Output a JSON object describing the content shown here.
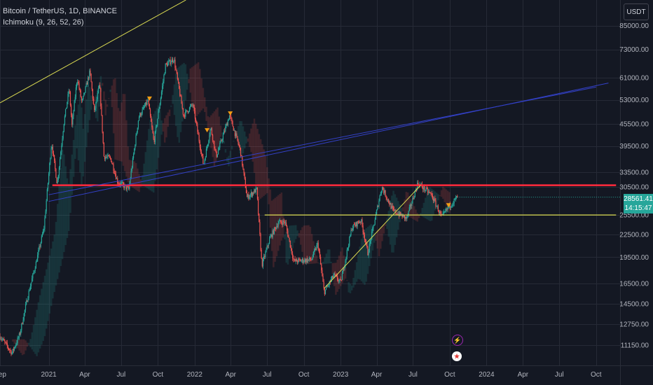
{
  "legend": {
    "symbol": "Bitcoin / TetherUS, 1D, BINANCE",
    "indicator": "Ichimoku (9, 26, 52, 26)"
  },
  "price_scale": {
    "unit": "USDT"
  },
  "last_price": {
    "value": "28561.41",
    "countdown": "14:15:47"
  },
  "colors": {
    "background": "#141823",
    "grid": "#262a36",
    "up": "#26a69a",
    "down": "#ef5350",
    "resistance": "#ff2a3c",
    "trendline": "#dcdc52",
    "channel": "#3341c8",
    "marker": "#f39c12"
  },
  "events": {
    "lightning_icon": "lightning-icon",
    "flag_icon": "us-flag-icon"
  },
  "chart_data": {
    "type": "candlestick",
    "y_scale": "log",
    "ylim": [
      9800,
      100000
    ],
    "y_ticks": [
      "85000.00",
      "73000.00",
      "61000.00",
      "53000.00",
      "45500.00",
      "39500.00",
      "33500.00",
      "30500.00",
      "25500.00",
      "22500.00",
      "19500.00",
      "16500.00",
      "14500.00",
      "12750.00",
      "11150.00"
    ],
    "y_tick_values": [
      85000,
      73000,
      61000,
      53000,
      45500,
      39500,
      33500,
      30500,
      25500,
      22500,
      19500,
      16500,
      14500,
      12750,
      11150
    ],
    "x_range": [
      "2020-09-01",
      "2024-11-30"
    ],
    "x_ticks": [
      {
        "label": "Sep",
        "date": "2020-09-01"
      },
      {
        "label": "2021",
        "date": "2021-01-01"
      },
      {
        "label": "Apr",
        "date": "2021-04-01"
      },
      {
        "label": "Jul",
        "date": "2021-07-01"
      },
      {
        "label": "Oct",
        "date": "2021-10-01"
      },
      {
        "label": "2022",
        "date": "2022-01-01"
      },
      {
        "label": "Apr",
        "date": "2022-04-01"
      },
      {
        "label": "Jul",
        "date": "2022-07-01"
      },
      {
        "label": "Oct",
        "date": "2022-10-01"
      },
      {
        "label": "2023",
        "date": "2023-01-01"
      },
      {
        "label": "Apr",
        "date": "2023-04-01"
      },
      {
        "label": "Jul",
        "date": "2023-07-01"
      },
      {
        "label": "Oct",
        "date": "2023-10-01"
      },
      {
        "label": "2024",
        "date": "2024-01-01"
      },
      {
        "label": "Apr",
        "date": "2024-04-01"
      },
      {
        "label": "Jul",
        "date": "2024-07-01"
      },
      {
        "label": "Oct",
        "date": "2024-10-01"
      }
    ],
    "last_date": "2023-10-20",
    "price_path": [
      [
        "2020-09-01",
        11800
      ],
      [
        "2020-10-01",
        10600
      ],
      [
        "2020-10-20",
        11900
      ],
      [
        "2020-11-10",
        15300
      ],
      [
        "2020-12-01",
        19000
      ],
      [
        "2020-12-20",
        23500
      ],
      [
        "2021-01-08",
        40500
      ],
      [
        "2021-01-22",
        31000
      ],
      [
        "2021-02-08",
        46000
      ],
      [
        "2021-02-21",
        57000
      ],
      [
        "2021-02-28",
        45000
      ],
      [
        "2021-03-13",
        61000
      ],
      [
        "2021-03-25",
        52000
      ],
      [
        "2021-04-14",
        63500
      ],
      [
        "2021-04-25",
        49000
      ],
      [
        "2021-05-08",
        58500
      ],
      [
        "2021-05-19",
        37000
      ],
      [
        "2021-06-05",
        36500
      ],
      [
        "2021-06-22",
        31500
      ],
      [
        "2021-07-20",
        30000
      ],
      [
        "2021-08-14",
        47500
      ],
      [
        "2021-09-06",
        52700
      ],
      [
        "2021-09-21",
        40500
      ],
      [
        "2021-10-20",
        66000
      ],
      [
        "2021-11-10",
        68800
      ],
      [
        "2021-12-04",
        48000
      ],
      [
        "2021-12-27",
        51500
      ],
      [
        "2022-01-23",
        35000
      ],
      [
        "2022-02-10",
        44500
      ],
      [
        "2022-02-24",
        37000
      ],
      [
        "2022-03-29",
        48000
      ],
      [
        "2022-04-25",
        38500
      ],
      [
        "2022-05-12",
        28500
      ],
      [
        "2022-06-05",
        30000
      ],
      [
        "2022-06-18",
        18500
      ],
      [
        "2022-07-08",
        22000
      ],
      [
        "2022-07-29",
        24300
      ],
      [
        "2022-08-15",
        24400
      ],
      [
        "2022-09-06",
        19000
      ],
      [
        "2022-10-20",
        19200
      ],
      [
        "2022-11-05",
        21300
      ],
      [
        "2022-11-21",
        15600
      ],
      [
        "2022-12-15",
        17400
      ],
      [
        "2023-01-01",
        16600
      ],
      [
        "2023-01-29",
        23500
      ],
      [
        "2023-02-21",
        24700
      ],
      [
        "2023-03-10",
        20000
      ],
      [
        "2023-04-14",
        30500
      ],
      [
        "2023-05-12",
        26200
      ],
      [
        "2023-06-15",
        24900
      ],
      [
        "2023-07-13",
        31200
      ],
      [
        "2023-08-16",
        29000
      ],
      [
        "2023-09-11",
        25100
      ],
      [
        "2023-09-30",
        27000
      ],
      [
        "2023-10-20",
        28561
      ]
    ],
    "drawings": [
      {
        "kind": "horizontal",
        "name": "resistance-line",
        "price": 30800,
        "from": "2021-01-10",
        "to": "2024-11-20",
        "color": "#ff2a3c"
      },
      {
        "kind": "horizontal",
        "name": "support-line",
        "price": 25500,
        "from": "2022-06-25",
        "to": "2024-11-20",
        "color": "#dcdc52"
      },
      {
        "kind": "trend",
        "name": "upper-trendline",
        "from": [
          "2020-09-01",
          52000
        ],
        "to": "2021-12-10",
        "to_price": 100000,
        "color": "#dcdc52"
      },
      {
        "kind": "trend",
        "name": "rising-trendline",
        "from": [
          "2022-11-21",
          16000
        ],
        "to": "2023-07-20",
        "to_price": 30800,
        "color": "#dcdc52"
      },
      {
        "kind": "trend",
        "name": "channel-line-upper",
        "from": [
          "2021-01-01",
          29000
        ],
        "to": "2024-10-01",
        "to_price": 57500,
        "color": "#3341c8"
      },
      {
        "kind": "trend",
        "name": "channel-line-lower",
        "from": [
          "2021-01-01",
          27800
        ],
        "to": "2024-11-01",
        "to_price": 59000,
        "color": "#3341c8"
      }
    ],
    "markers": [
      {
        "date": "2021-09-10",
        "price": 53200
      },
      {
        "date": "2022-03-31",
        "price": 48400
      },
      {
        "date": "2022-02-01",
        "price": 43500
      },
      {
        "date": "2023-09-28",
        "price": 27000
      }
    ]
  }
}
